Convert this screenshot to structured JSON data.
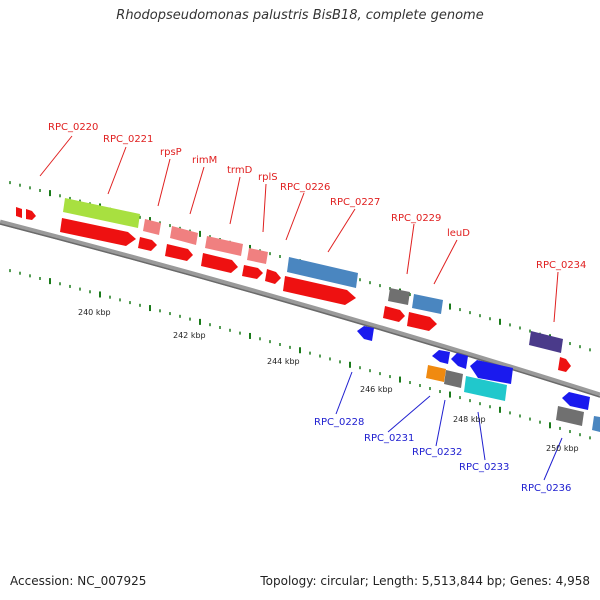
{
  "title": "Rhodopseudomonas palustris BisB18, complete genome",
  "footer": {
    "accession": "Accession: NC_007925",
    "topology": "Topology: circular; Length: 5,513,844 bp; Genes: 4,958"
  },
  "scale_labels": [
    "240 kbp",
    "242 kbp",
    "244 kbp",
    "246 kbp",
    "248 kbp",
    "250 kbp"
  ],
  "gene_labels_forward": [
    "RPC_0220",
    "RPC_0221",
    "rpsP",
    "rimM",
    "trmD",
    "rplS",
    "RPC_0226",
    "RPC_0227",
    "RPC_0229",
    "leuD",
    "RPC_0234"
  ],
  "gene_labels_reverse": [
    "RPC_0228",
    "RPC_0231",
    "RPC_0232",
    "RPC_0233",
    "RPC_0236"
  ],
  "colors": {
    "backbone": "#8a8a8a",
    "tick": "#1a7a1a",
    "label_forward": "#e02020",
    "label_reverse": "#2020d0",
    "cds": "#ee1111",
    "gene_lime": "#a8e040",
    "gene_pink": "#f08080",
    "gene_steel": "#4a86c0",
    "gene_gray": "#707070",
    "gene_purple": "#4a3a8a",
    "gene_blue": "#1a1aee",
    "gene_orange": "#f08a10",
    "gene_cyan": "#20c8cc"
  }
}
